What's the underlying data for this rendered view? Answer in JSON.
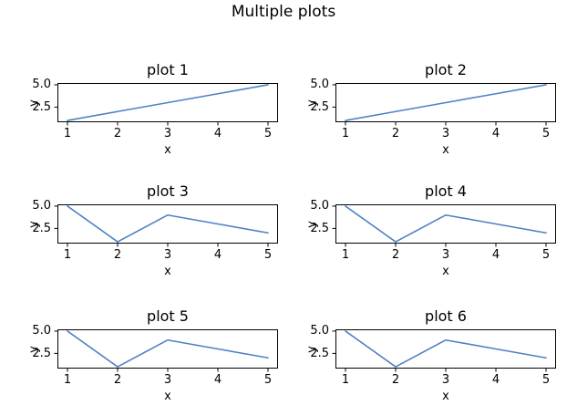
{
  "figure": {
    "title": "Multiple plots",
    "background_color": "#ffffff"
  },
  "style": {
    "line_color": "#4f82c4",
    "spine_color": "#000000",
    "text_color": "#000000",
    "grid": false
  },
  "chart_data": [
    {
      "type": "line",
      "title": "plot 1",
      "xlabel": "x",
      "ylabel": "y",
      "x": [
        1,
        2,
        3,
        4,
        5
      ],
      "y": [
        1,
        2,
        3,
        4,
        5
      ],
      "xlim": [
        0.8,
        5.2
      ],
      "ylim": [
        0.8,
        5.2
      ],
      "xticks": [
        1,
        2,
        3,
        4,
        5
      ],
      "xtick_labels": [
        "1",
        "2",
        "3",
        "4",
        "5"
      ],
      "yticks": [
        2.5,
        5.0
      ],
      "ytick_labels": [
        "2.5",
        "5.0"
      ],
      "grid": false,
      "legend": false
    },
    {
      "type": "line",
      "title": "plot 2",
      "xlabel": "x",
      "ylabel": "y",
      "x": [
        1,
        2,
        3,
        4,
        5
      ],
      "y": [
        1,
        2,
        3,
        4,
        5
      ],
      "xlim": [
        0.8,
        5.2
      ],
      "ylim": [
        0.8,
        5.2
      ],
      "xticks": [
        1,
        2,
        3,
        4,
        5
      ],
      "xtick_labels": [
        "1",
        "2",
        "3",
        "4",
        "5"
      ],
      "yticks": [
        2.5,
        5.0
      ],
      "ytick_labels": [
        "2.5",
        "5.0"
      ],
      "grid": false,
      "legend": false
    },
    {
      "type": "line",
      "title": "plot 3",
      "xlabel": "x",
      "ylabel": "y",
      "x": [
        1,
        2,
        3,
        4,
        5
      ],
      "y": [
        5,
        1,
        4,
        3,
        2
      ],
      "xlim": [
        0.8,
        5.2
      ],
      "ylim": [
        0.8,
        5.2
      ],
      "xticks": [
        1,
        2,
        3,
        4,
        5
      ],
      "xtick_labels": [
        "1",
        "2",
        "3",
        "4",
        "5"
      ],
      "yticks": [
        2.5,
        5.0
      ],
      "ytick_labels": [
        "2.5",
        "5.0"
      ],
      "grid": false,
      "legend": false
    },
    {
      "type": "line",
      "title": "plot 4",
      "xlabel": "x",
      "ylabel": "y",
      "x": [
        1,
        2,
        3,
        4,
        5
      ],
      "y": [
        5,
        1,
        4,
        3,
        2
      ],
      "xlim": [
        0.8,
        5.2
      ],
      "ylim": [
        0.8,
        5.2
      ],
      "xticks": [
        1,
        2,
        3,
        4,
        5
      ],
      "xtick_labels": [
        "1",
        "2",
        "3",
        "4",
        "5"
      ],
      "yticks": [
        2.5,
        5.0
      ],
      "ytick_labels": [
        "2.5",
        "5.0"
      ],
      "grid": false,
      "legend": false
    },
    {
      "type": "line",
      "title": "plot 5",
      "xlabel": "x",
      "ylabel": "y",
      "x": [
        1,
        2,
        3,
        4,
        5
      ],
      "y": [
        5,
        1,
        4,
        3,
        2
      ],
      "xlim": [
        0.8,
        5.2
      ],
      "ylim": [
        0.8,
        5.2
      ],
      "xticks": [
        1,
        2,
        3,
        4,
        5
      ],
      "xtick_labels": [
        "1",
        "2",
        "3",
        "4",
        "5"
      ],
      "yticks": [
        2.5,
        5.0
      ],
      "ytick_labels": [
        "2.5",
        "5.0"
      ],
      "grid": false,
      "legend": false
    },
    {
      "type": "line",
      "title": "plot 6",
      "xlabel": "x",
      "ylabel": "y",
      "x": [
        1,
        2,
        3,
        4,
        5
      ],
      "y": [
        5,
        1,
        4,
        3,
        2
      ],
      "xlim": [
        0.8,
        5.2
      ],
      "ylim": [
        0.8,
        5.2
      ],
      "xticks": [
        1,
        2,
        3,
        4,
        5
      ],
      "xtick_labels": [
        "1",
        "2",
        "3",
        "4",
        "5"
      ],
      "yticks": [
        2.5,
        5.0
      ],
      "ytick_labels": [
        "2.5",
        "5.0"
      ],
      "grid": false,
      "legend": false
    }
  ]
}
